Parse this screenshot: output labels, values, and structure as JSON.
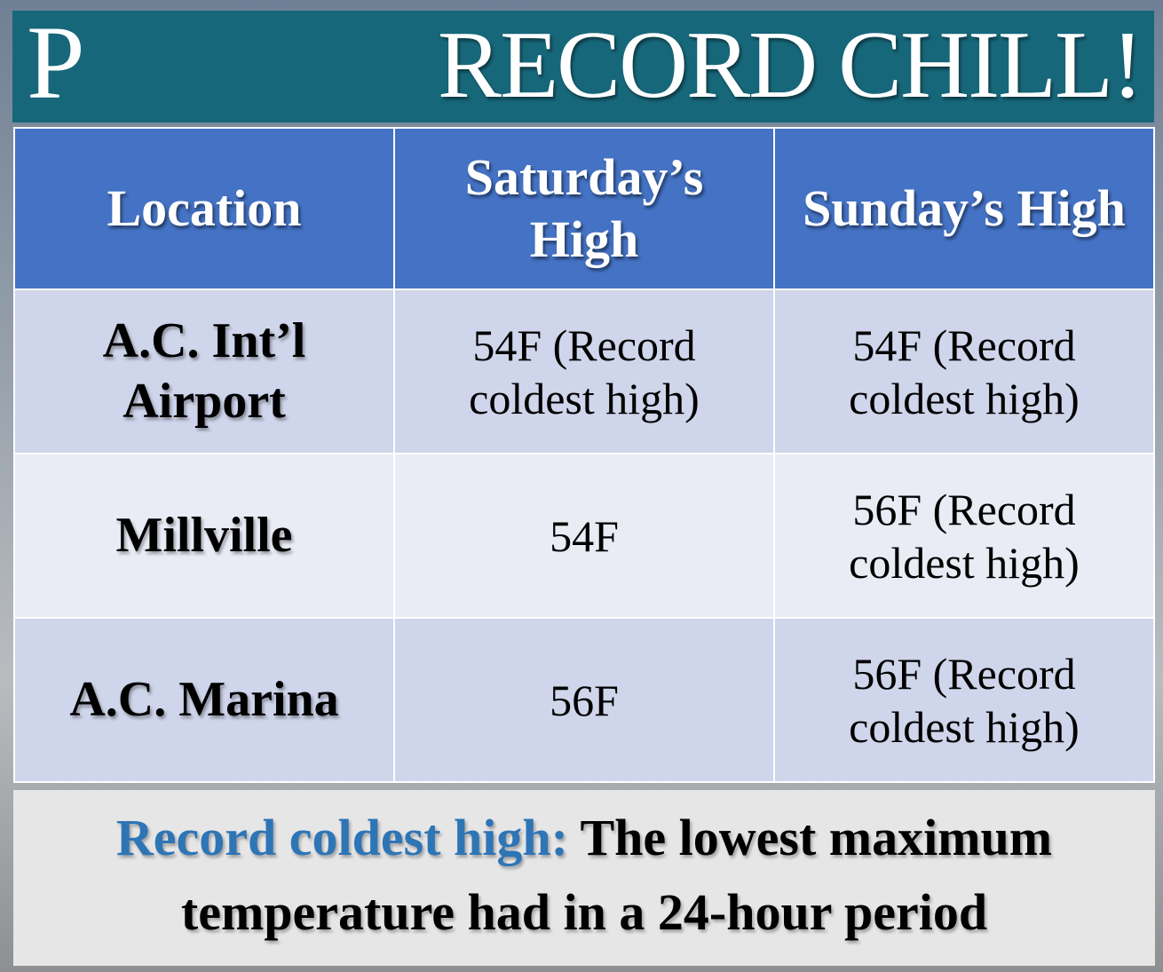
{
  "header": {
    "logo": "P",
    "title": "RECORD CHILL!"
  },
  "table": {
    "columns": [
      "Location",
      "Saturday’s High",
      "Sunday’s High"
    ],
    "rows": [
      [
        "A.C. Int’l Airport",
        "54F (Record coldest high)",
        "54F (Record coldest high)"
      ],
      [
        "Millville",
        "54F",
        "56F (Record coldest high)"
      ],
      [
        "A.C. Marina",
        "56F",
        "56F (Record coldest high)"
      ]
    ]
  },
  "footnote": {
    "term": "Record coldest high:",
    "definition": "The lowest maximum temperature had in a 24-hour period"
  }
}
